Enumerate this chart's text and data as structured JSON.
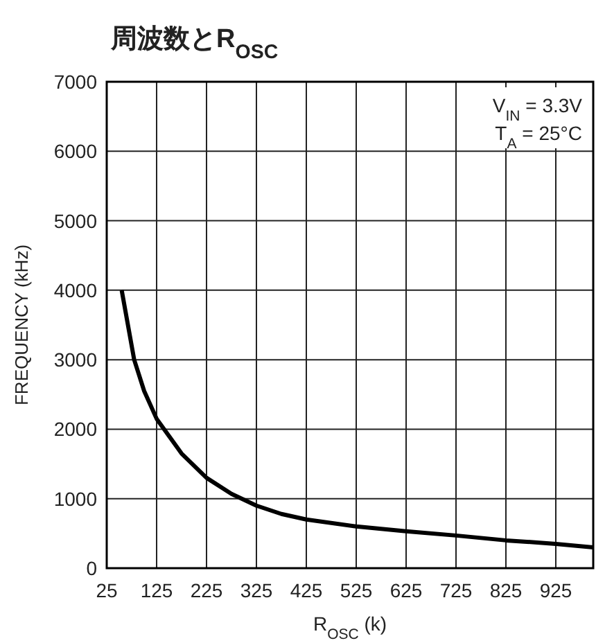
{
  "chart_data": {
    "type": "line",
    "title": "周波数とR$_{OSC}$",
    "xlabel": "R$_{OSC}$ (k)",
    "ylabel": "FREQUENCY (kHz)",
    "annotations": [
      "V$_{IN}$ = 3.3V",
      "T$_{A}$ = 25°C"
    ],
    "x": [
      55,
      80,
      100,
      125,
      175,
      225,
      275,
      325,
      375,
      425,
      525,
      625,
      725,
      825,
      925,
      1000
    ],
    "series": [
      {
        "color": "#000000",
        "values": [
          4000,
          3000,
          2550,
          2150,
          1650,
          1300,
          1070,
          900,
          780,
          700,
          600,
          530,
          470,
          400,
          350,
          300
        ]
      }
    ],
    "xlim": [
      25,
      1000
    ],
    "xticks": [
      25,
      125,
      225,
      325,
      425,
      525,
      625,
      725,
      825,
      925
    ],
    "ylim": [
      0,
      7000
    ],
    "yticks": [
      0,
      1000,
      2000,
      3000,
      4000,
      5000,
      6000,
      7000
    ],
    "grid": true,
    "marker": "none",
    "line_style": "solid"
  }
}
